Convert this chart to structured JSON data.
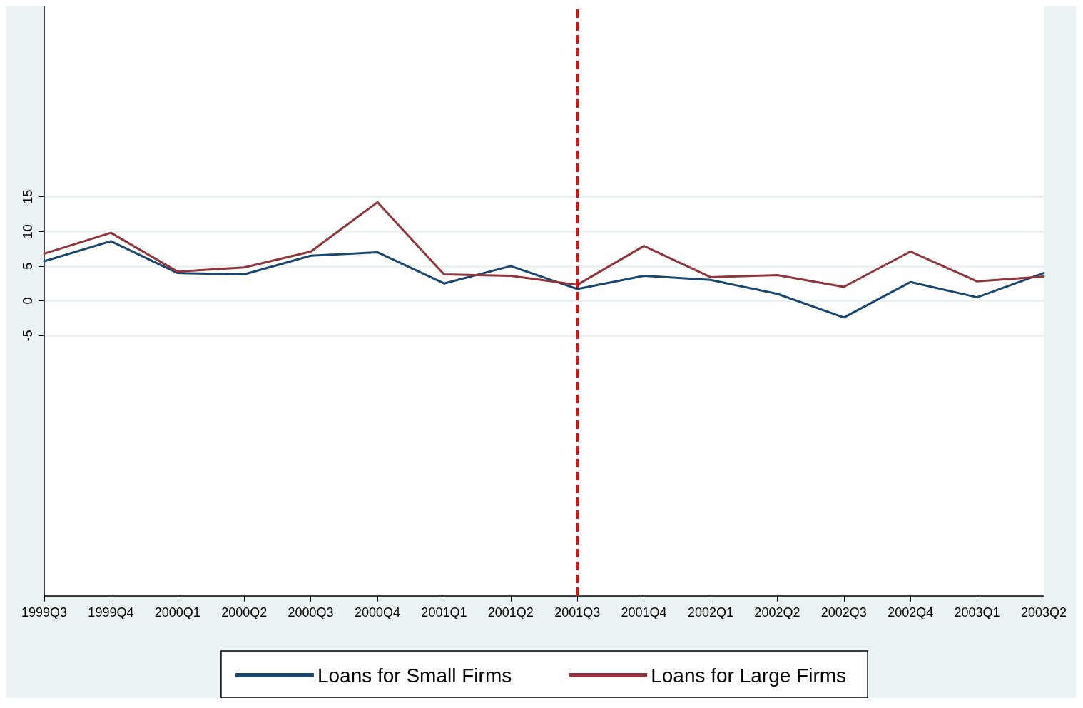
{
  "chart_data": {
    "type": "line",
    "categories": [
      "1999Q3",
      "1999Q4",
      "2000Q1",
      "2000Q2",
      "2000Q3",
      "2000Q4",
      "2001Q1",
      "2001Q2",
      "2001Q3",
      "2001Q4",
      "2002Q1",
      "2002Q2",
      "2002Q3",
      "2002Q4",
      "2003Q1",
      "2003Q2"
    ],
    "series": [
      {
        "name": "Loans for Small Firms",
        "color": "#1a476f",
        "values": [
          5.7,
          8.6,
          4.0,
          3.8,
          6.5,
          7.0,
          2.5,
          5.0,
          1.7,
          3.6,
          3.0,
          1.0,
          -2.4,
          2.7,
          0.5,
          4.0
        ]
      },
      {
        "name": "Loans for Large Firms",
        "color": "#90353b",
        "values": [
          6.8,
          9.8,
          4.2,
          4.8,
          7.1,
          14.2,
          3.8,
          3.6,
          2.3,
          7.9,
          3.4,
          3.7,
          2.0,
          7.1,
          2.8,
          3.5
        ]
      }
    ],
    "ylim": [
      -42.5,
      42.5
    ],
    "yticks": [
      -5,
      0,
      5,
      10,
      15
    ],
    "grid": "y",
    "legend": "bottom",
    "marker": "none",
    "line_style": "solid",
    "ref_lines": [
      {
        "axis": "x",
        "value": "2001Q3",
        "color": "#ff0000",
        "line_style": "dashed"
      }
    ]
  }
}
